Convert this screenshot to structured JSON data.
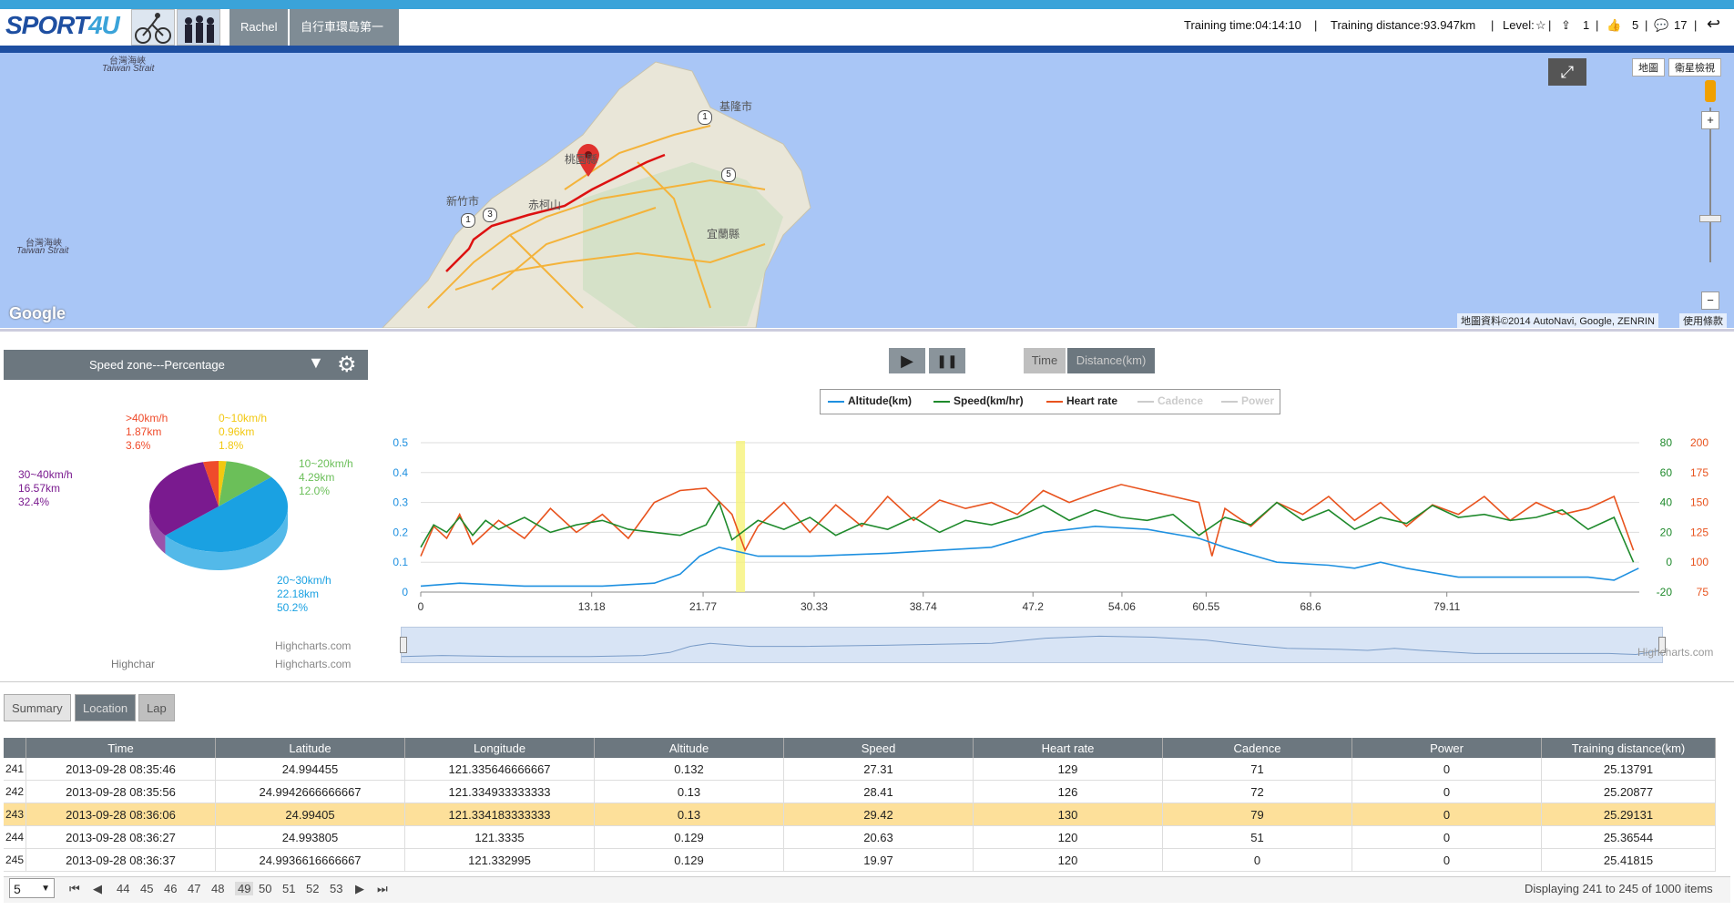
{
  "header": {
    "logo_text_main": "SPORT",
    "logo_text_accent": "4U",
    "logo_sub": "",
    "user_name": "Rachel",
    "activity_title": "自行車環島第一天",
    "training_time": "Training time:04:14:10",
    "training_distance": "Training distance:93.947km",
    "level_label": "Level:",
    "count_a": "1",
    "count_b": "5",
    "count_c": "17",
    "separator": "|"
  },
  "map": {
    "view_map": "地圖",
    "view_satellite": "衛星檢視",
    "strait_label_1": "台灣海峽",
    "strait_label_1_en": "Taiwan Strait",
    "strait_label_2": "台灣海峽",
    "strait_label_2_en": "Taiwan Strait",
    "place_keelung": "基隆市",
    "place_taoyuan": "桃園縣",
    "place_hsinchu": "新竹市",
    "place_chikeshan": "赤柯山",
    "place_yilan": "宜蘭縣",
    "route_1a": "1",
    "route_1b": "1",
    "route_3": "3",
    "route_5": "5",
    "google": "Google",
    "attribution": "地圖資料©2014 AutoNavi, Google, ZENRIN",
    "terms": "使用條款",
    "zoom_in": "+",
    "zoom_out": "−"
  },
  "pie_panel": {
    "dropdown_label": "Speed zone---Percentage",
    "credit_1": "Highchar",
    "credit_2": "Highcharts.com",
    "credit_3": "Highcharts.com"
  },
  "pie_data": [
    {
      "label": "0~10km/h",
      "dist": "0.96km",
      "pct": "1.8%",
      "value": 1.8,
      "color": "#f2c811"
    },
    {
      "label": "10~20km/h",
      "dist": "4.29km",
      "pct": "12.0%",
      "value": 12.0,
      "color": "#6bbf59"
    },
    {
      "label": "20~30km/h",
      "dist": "22.18km",
      "pct": "50.2%",
      "value": 50.2,
      "color": "#1aa1e2"
    },
    {
      "label": "30~40km/h",
      "dist": "16.57km",
      "pct": "32.4%",
      "value": 32.4,
      "color": "#7a1a8f"
    },
    {
      "label": ">40km/h",
      "dist": "1.87km",
      "pct": "3.6%",
      "value": 3.6,
      "color": "#ef4b2b"
    }
  ],
  "controls": {
    "play": "▶",
    "pause": "❚❚",
    "time_btn": "Time",
    "distance_btn": "Distance(km)"
  },
  "chart_data": {
    "type": "line",
    "legend": [
      {
        "name": "Altitude(km)",
        "color": "#1e90e0",
        "active": true
      },
      {
        "name": "Speed(km/hr)",
        "color": "#1f8a2c",
        "active": true
      },
      {
        "name": "Heart rate",
        "color": "#e8531e",
        "active": true
      },
      {
        "name": "Cadence",
        "color": "#c8c8c8",
        "active": false
      },
      {
        "name": "Power",
        "color": "#c8c8c8",
        "active": false
      }
    ],
    "x_ticks": [
      "0",
      "13.18",
      "21.77",
      "30.33",
      "38.74",
      "47.2",
      "54.06",
      "60.55",
      "68.6",
      "79.11"
    ],
    "x_tick_values": [
      0,
      13.18,
      21.77,
      30.33,
      38.74,
      47.2,
      54.06,
      60.55,
      68.6,
      79.11
    ],
    "xlim": [
      0,
      93.947
    ],
    "y_left_ticks": [
      "0",
      "0.1",
      "0.2",
      "0.3",
      "0.4",
      "0.5"
    ],
    "y_left_color": "#1e90e0",
    "y_right1_ticks": [
      "-20",
      "0",
      "20",
      "40",
      "60",
      "80"
    ],
    "y_right1_color": "#1f8a2c",
    "y_right2_ticks": [
      "75",
      "100",
      "125",
      "150",
      "175",
      "200"
    ],
    "y_right2_color": "#e8531e",
    "altitude": {
      "x": [
        0,
        3,
        8,
        14,
        18,
        20,
        21.5,
        23,
        26,
        30,
        36,
        40,
        44,
        48,
        52,
        56,
        60,
        62,
        66,
        70,
        72,
        74,
        76,
        80,
        86,
        90,
        92,
        93.9
      ],
      "y": [
        0.02,
        0.03,
        0.02,
        0.02,
        0.03,
        0.06,
        0.12,
        0.15,
        0.12,
        0.12,
        0.13,
        0.14,
        0.15,
        0.2,
        0.22,
        0.21,
        0.18,
        0.15,
        0.1,
        0.09,
        0.08,
        0.1,
        0.08,
        0.05,
        0.05,
        0.05,
        0.04,
        0.08
      ]
    },
    "speed": {
      "x": [
        0,
        1,
        2,
        3,
        4,
        5,
        6,
        8,
        10,
        12,
        14,
        16,
        18,
        20,
        22,
        23,
        24,
        26,
        28,
        30,
        32,
        34,
        36,
        38,
        40,
        42,
        44,
        46,
        48,
        50,
        52,
        54,
        56,
        58,
        60,
        62,
        64,
        66,
        68,
        70,
        72,
        74,
        76,
        78,
        80,
        82,
        84,
        86,
        88,
        90,
        92,
        93.5
      ],
      "y": [
        10,
        25,
        20,
        30,
        18,
        28,
        22,
        30,
        20,
        25,
        28,
        22,
        20,
        18,
        25,
        40,
        15,
        28,
        22,
        30,
        18,
        26,
        22,
        30,
        20,
        28,
        25,
        30,
        38,
        28,
        35,
        30,
        28,
        32,
        18,
        30,
        25,
        40,
        28,
        35,
        22,
        30,
        26,
        38,
        30,
        32,
        28,
        30,
        35,
        22,
        30,
        0
      ]
    },
    "heart_rate": {
      "x": [
        0,
        1,
        2,
        3,
        4,
        6,
        8,
        10,
        12,
        14,
        16,
        18,
        20,
        22,
        24,
        25,
        26,
        28,
        30,
        32,
        34,
        36,
        38,
        40,
        42,
        44,
        46,
        48,
        50,
        52,
        54,
        56,
        58,
        60,
        61,
        62,
        64,
        66,
        68,
        70,
        72,
        74,
        76,
        78,
        80,
        82,
        84,
        86,
        88,
        90,
        92,
        93.5
      ],
      "y": [
        105,
        130,
        120,
        140,
        115,
        135,
        120,
        145,
        125,
        140,
        120,
        150,
        160,
        162,
        140,
        110,
        130,
        150,
        125,
        148,
        130,
        155,
        135,
        152,
        145,
        150,
        140,
        160,
        150,
        158,
        165,
        160,
        155,
        150,
        105,
        145,
        130,
        150,
        140,
        155,
        135,
        150,
        130,
        148,
        140,
        155,
        135,
        150,
        140,
        145,
        155,
        110
      ]
    },
    "highlight_x": [
      24.3,
      25.0
    ],
    "navigator_credit": "Highcharts.com"
  },
  "tabs": [
    "Summary",
    "Location",
    "Lap"
  ],
  "table": {
    "columns": [
      "Time",
      "Latitude",
      "Longitude",
      "Altitude",
      "Speed",
      "Heart rate",
      "Cadence",
      "Power",
      "Training distance(km)"
    ],
    "rows": [
      {
        "n": "241",
        "cells": [
          "2013-09-28 08:35:46",
          "24.994455",
          "121.335646666667",
          "0.132",
          "27.31",
          "129",
          "71",
          "0",
          "25.13791"
        ]
      },
      {
        "n": "242",
        "cells": [
          "2013-09-28 08:35:56",
          "24.9942666666667",
          "121.334933333333",
          "0.13",
          "28.41",
          "126",
          "72",
          "0",
          "25.20877"
        ]
      },
      {
        "n": "243",
        "cells": [
          "2013-09-28 08:36:06",
          "24.99405",
          "121.334183333333",
          "0.13",
          "29.42",
          "130",
          "79",
          "0",
          "25.29131"
        ],
        "selected": true
      },
      {
        "n": "244",
        "cells": [
          "2013-09-28 08:36:27",
          "24.993805",
          "121.3335",
          "0.129",
          "20.63",
          "120",
          "51",
          "0",
          "25.36544"
        ]
      },
      {
        "n": "245",
        "cells": [
          "2013-09-28 08:36:37",
          "24.9936616666667",
          "121.332995",
          "0.129",
          "19.97",
          "120",
          "0",
          "0",
          "25.41815"
        ]
      }
    ]
  },
  "pager": {
    "page_size": "5",
    "pages": [
      "44",
      "45",
      "46",
      "47",
      "48",
      "49",
      "50",
      "51",
      "52",
      "53"
    ],
    "current": "49",
    "status": "Displaying 241 to 245 of 1000 items"
  }
}
